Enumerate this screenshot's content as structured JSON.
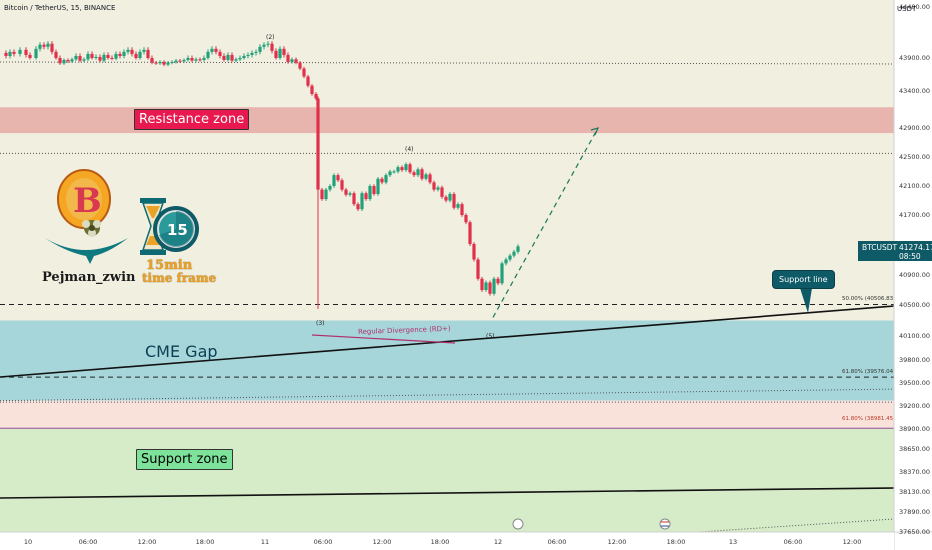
{
  "header": {
    "symbol_line": "Bitcoin / TetherUS, 15, BINANCE",
    "currency": "USDT"
  },
  "price_tag": {
    "symbol": "BTCUSDT",
    "price": "41274.17",
    "countdown": "08:50"
  },
  "zones": {
    "resistance_label": "Resistance zone",
    "support_label": "Support zone",
    "cme_label": "CME Gap"
  },
  "annotations": {
    "support_line_label": "Support line",
    "divergence_label": "Regular Divergence (RD+)",
    "fib_50": "50.00% (40506.83)",
    "fib_618_a": "61.80% (39576.04)",
    "fib_618_b": "61.80% (38981.45)",
    "waves": [
      "(2)",
      "(3)",
      "(4)",
      "(5)"
    ]
  },
  "branding": {
    "author": "Pejman_zwin",
    "timeframe_line1": "15min",
    "timeframe_line2": "time frame",
    "timer_number": "15"
  },
  "colors": {
    "bull": "#22a07a",
    "bear": "#e0304a",
    "resistance_fill": "#e8b4ae",
    "cme_fill": "#a6d6da",
    "support_fill": "#d6ecc8",
    "background_upper": "#f0efe0",
    "price_tag": "#0e5a66"
  },
  "chart_data": {
    "type": "candlestick",
    "y_ticks": [
      "44400.00",
      "43900.00",
      "43400.00",
      "42900.00",
      "42500.00",
      "42100.00",
      "41700.00",
      "41300.00",
      "40900.00",
      "40500.00",
      "40100.00",
      "39800.00",
      "39500.00",
      "39200.00",
      "38900.00",
      "38650.00",
      "38370.00",
      "38130.00",
      "37890.00",
      "37650.00"
    ],
    "x_ticks": [
      "10",
      "06:00",
      "12:00",
      "18:00",
      "11",
      "06:00",
      "12:00",
      "18:00",
      "12",
      "06:00",
      "12:00",
      "18:00",
      "13",
      "06:00",
      "12:00"
    ],
    "close_path": [
      [
        0,
        43950
      ],
      [
        6,
        43920
      ],
      [
        10,
        43960
      ],
      [
        14,
        43940
      ],
      [
        20,
        43980
      ],
      [
        26,
        43930
      ],
      [
        30,
        43900
      ],
      [
        36,
        43990
      ],
      [
        40,
        44030
      ],
      [
        44,
        44010
      ],
      [
        48,
        44040
      ],
      [
        52,
        43960
      ],
      [
        56,
        43900
      ],
      [
        60,
        43820
      ],
      [
        64,
        43870
      ],
      [
        68,
        43850
      ],
      [
        72,
        43880
      ],
      [
        76,
        43920
      ],
      [
        80,
        43860
      ],
      [
        84,
        43880
      ],
      [
        88,
        43940
      ],
      [
        92,
        43900
      ],
      [
        96,
        43910
      ],
      [
        100,
        43860
      ],
      [
        104,
        43930
      ],
      [
        108,
        43900
      ],
      [
        112,
        43890
      ],
      [
        116,
        43940
      ],
      [
        120,
        43920
      ],
      [
        124,
        43960
      ],
      [
        128,
        43980
      ],
      [
        132,
        43940
      ],
      [
        136,
        43900
      ],
      [
        140,
        43960
      ],
      [
        144,
        43980
      ],
      [
        148,
        43900
      ],
      [
        152,
        43830
      ],
      [
        156,
        43820
      ],
      [
        160,
        43840
      ],
      [
        164,
        43800
      ],
      [
        168,
        43830
      ],
      [
        172,
        43840
      ],
      [
        176,
        43860
      ],
      [
        180,
        43850
      ],
      [
        184,
        43870
      ],
      [
        188,
        43900
      ],
      [
        192,
        43860
      ],
      [
        196,
        43880
      ],
      [
        200,
        43870
      ],
      [
        204,
        43900
      ],
      [
        208,
        43960
      ],
      [
        212,
        43990
      ],
      [
        216,
        43960
      ],
      [
        220,
        43920
      ],
      [
        224,
        43870
      ],
      [
        228,
        43930
      ],
      [
        232,
        43860
      ],
      [
        236,
        43880
      ],
      [
        240,
        43900
      ],
      [
        244,
        43920
      ],
      [
        248,
        43930
      ],
      [
        252,
        43950
      ],
      [
        256,
        43960
      ],
      [
        260,
        44010
      ],
      [
        264,
        44030
      ],
      [
        268,
        44040
      ],
      [
        272,
        43970
      ],
      [
        276,
        43900
      ],
      [
        280,
        43990
      ],
      [
        284,
        43930
      ],
      [
        288,
        43840
      ],
      [
        292,
        43880
      ],
      [
        296,
        43830
      ],
      [
        300,
        43740
      ],
      [
        304,
        43620
      ],
      [
        308,
        43480
      ],
      [
        312,
        43360
      ],
      [
        316,
        43300
      ],
      [
        318,
        42050
      ],
      [
        322,
        41920
      ],
      [
        326,
        42050
      ],
      [
        330,
        42100
      ],
      [
        334,
        42250
      ],
      [
        338,
        42180
      ],
      [
        342,
        42050
      ],
      [
        346,
        41980
      ],
      [
        350,
        42000
      ],
      [
        354,
        41850
      ],
      [
        358,
        41780
      ],
      [
        362,
        42000
      ],
      [
        366,
        41920
      ],
      [
        370,
        42100
      ],
      [
        374,
        41990
      ],
      [
        378,
        42200
      ],
      [
        382,
        42150
      ],
      [
        386,
        42250
      ],
      [
        390,
        42300
      ],
      [
        394,
        42300
      ],
      [
        398,
        42360
      ],
      [
        402,
        42320
      ],
      [
        406,
        42400
      ],
      [
        410,
        42290
      ],
      [
        414,
        42250
      ],
      [
        418,
        42330
      ],
      [
        422,
        42200
      ],
      [
        426,
        42260
      ],
      [
        430,
        42150
      ],
      [
        434,
        42050
      ],
      [
        438,
        42080
      ],
      [
        442,
        41950
      ],
      [
        446,
        41900
      ],
      [
        450,
        41990
      ],
      [
        454,
        41800
      ],
      [
        458,
        41850
      ],
      [
        462,
        41700
      ],
      [
        466,
        41600
      ],
      [
        470,
        41300
      ],
      [
        474,
        41100
      ],
      [
        478,
        40850
      ],
      [
        482,
        40700
      ],
      [
        486,
        40800
      ],
      [
        490,
        40650
      ],
      [
        494,
        40850
      ],
      [
        498,
        40790
      ],
      [
        502,
        41050
      ],
      [
        506,
        41100
      ],
      [
        510,
        41150
      ],
      [
        514,
        41200
      ],
      [
        518,
        41270
      ]
    ],
    "projection": [
      [
        493,
        40340
      ],
      [
        598,
        42900
      ]
    ],
    "levels": {
      "resistance_zone": [
        42830,
        43180
      ],
      "upper_dotted": [
        43840,
        42550
      ],
      "fib_50": 40506.83,
      "cme_gap": [
        39270,
        40300
      ],
      "fib_618_a": 39576.04,
      "fib_618_b": 38981.45,
      "support_zone": [
        37680,
        38910
      ]
    }
  }
}
